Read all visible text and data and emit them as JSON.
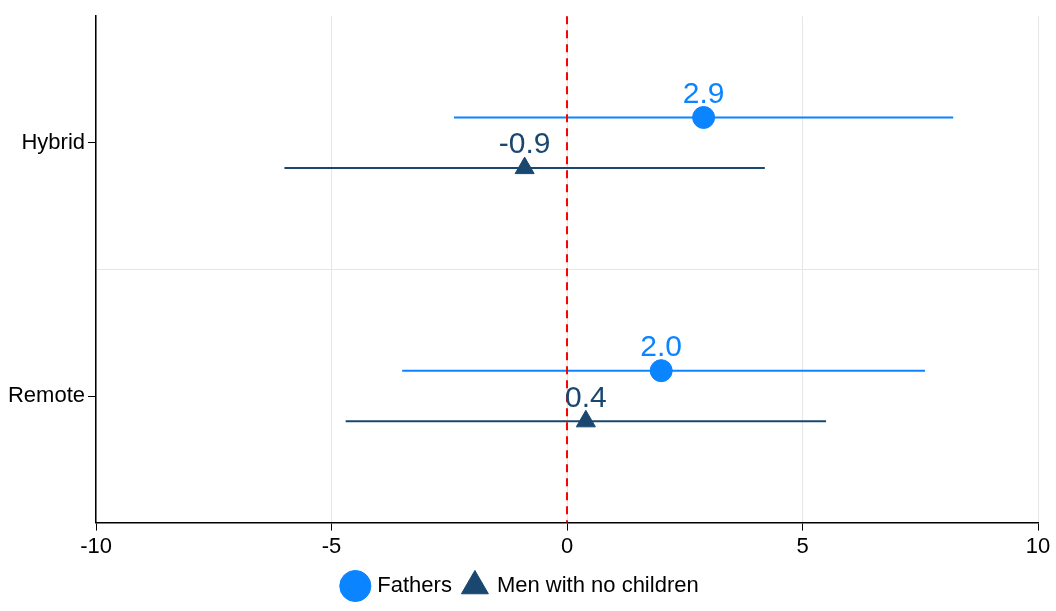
{
  "chart_data": {
    "type": "scatter",
    "orientation": "horizontal",
    "categories": [
      "Hybrid",
      "Remote"
    ],
    "series": [
      {
        "name": "Fathers",
        "color": "#0a84ff",
        "marker": "circle",
        "values": [
          2.9,
          2.0
        ],
        "value_labels": [
          "2.9",
          "2.0"
        ],
        "errors": [
          [
            -2.4,
            8.2
          ],
          [
            -3.5,
            7.6
          ]
        ]
      },
      {
        "name": "Men with no children",
        "color": "#1a476f",
        "marker": "triangle",
        "values": [
          -0.9,
          0.4
        ],
        "value_labels": [
          "-0.9",
          "0.4"
        ],
        "errors": [
          [
            -6.0,
            4.2
          ],
          [
            -4.7,
            5.5
          ]
        ]
      }
    ],
    "xlim": [
      -10,
      10
    ],
    "xticks": [
      -10,
      -5,
      0,
      5,
      10
    ],
    "ref_lines": [
      {
        "axis": "x",
        "value": 0,
        "color": "#ff0000",
        "line_style": "dashed"
      }
    ],
    "grid": true,
    "legend": "bottom"
  }
}
